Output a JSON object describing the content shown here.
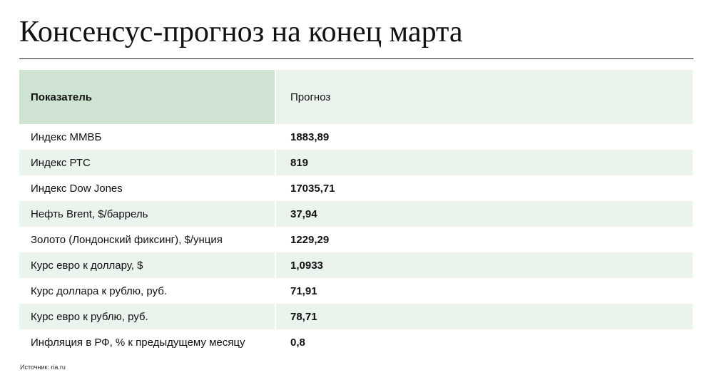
{
  "title": "Консенсус-прогноз на конец марта",
  "table": {
    "header": {
      "indicator": "Показатель",
      "forecast": "Прогноз"
    },
    "rows": [
      {
        "indicator": "Индекс ММВБ",
        "forecast": "1883,89"
      },
      {
        "indicator": "Индекс РТС",
        "forecast": "819"
      },
      {
        "indicator": "Индекс Dow Jones",
        "forecast": "17035,71"
      },
      {
        "indicator": "Нефть Brent, $/баррель",
        "forecast": "37,94"
      },
      {
        "indicator": "Золото (Лондонский фиксинг), $/унция",
        "forecast": "1229,29"
      },
      {
        "indicator": "Курс евро к доллару, $",
        "forecast": "1,0933"
      },
      {
        "indicator": "Курс доллара к рублю, руб.",
        "forecast": "71,91"
      },
      {
        "indicator": "Курс евро к рублю, руб.",
        "forecast": "78,71"
      },
      {
        "indicator": "Инфляция в РФ, % к предыдущему месяцу",
        "forecast": "0,8"
      }
    ]
  },
  "source": "Источник: ria.ru",
  "colors": {
    "header_label_bg": "#cfe3d2",
    "shaded_row_bg": "#ebf3ed",
    "text": "#111111"
  }
}
